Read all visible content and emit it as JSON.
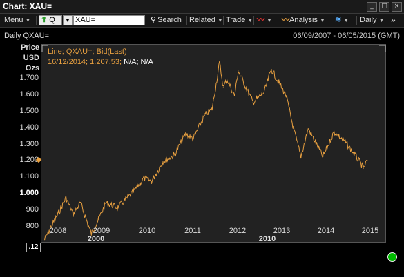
{
  "window": {
    "title": "Chart: XAU="
  },
  "toolbar": {
    "menu_label": "Menu",
    "q_label": "Q",
    "symbol_value": "XAU=",
    "search_label": "Search",
    "related_label": "Related",
    "trade_label": "Trade",
    "analysis_label": "Analysis",
    "daily_label": "Daily"
  },
  "chart": {
    "header_left": "Daily QXAU=",
    "header_right": "06/09/2007 - 06/05/2015 (GMT)",
    "units": [
      "Price",
      "USD",
      "Ozs"
    ],
    "legend_line1": "Line; QXAU=; Bid(Last)",
    "legend_line2": "16/12/2014; 1.207,53;",
    "legend_na": "N/A; N/A",
    "last_value_box": ".12",
    "colors": {
      "line": "#e8a040",
      "plot_bg": "#222222",
      "bg": "#000000"
    }
  },
  "chart_data": {
    "type": "line",
    "series": [
      {
        "name": "QXAU=",
        "x": [
          "2007-09",
          "2008-01",
          "2008-03",
          "2008-05",
          "2008-07",
          "2008-10",
          "2008-12",
          "2009-02",
          "2009-05",
          "2009-09",
          "2009-12",
          "2010-02",
          "2010-05",
          "2010-08",
          "2010-11",
          "2011-01",
          "2011-04",
          "2011-06",
          "2011-08",
          "2011-09",
          "2011-10",
          "2011-12",
          "2012-01",
          "2012-05",
          "2012-08",
          "2012-10",
          "2012-12",
          "2013-02",
          "2013-04",
          "2013-06",
          "2013-08",
          "2013-12",
          "2014-03",
          "2014-06",
          "2014-09",
          "2014-11",
          "2014-12"
        ],
        "values": [
          720,
          890,
          980,
          880,
          950,
          760,
          850,
          950,
          920,
          1010,
          1100,
          1080,
          1200,
          1240,
          1370,
          1340,
          1480,
          1520,
          1800,
          1650,
          1700,
          1600,
          1750,
          1560,
          1620,
          1760,
          1680,
          1600,
          1400,
          1230,
          1400,
          1230,
          1380,
          1320,
          1230,
          1160,
          1207.53
        ]
      }
    ],
    "y_ticks": [
      "800",
      "900",
      "1.000",
      "1.100",
      "1.200",
      "1.300",
      "1.400",
      "1.500",
      "1.600",
      "1.700"
    ],
    "x_ticks": [
      "2008",
      "2009",
      "2010",
      "2011",
      "2012",
      "2013",
      "2014",
      "2015"
    ],
    "x_major_ticks": [
      "2000",
      "2010"
    ],
    "ylim": [
      680,
      1850
    ]
  }
}
